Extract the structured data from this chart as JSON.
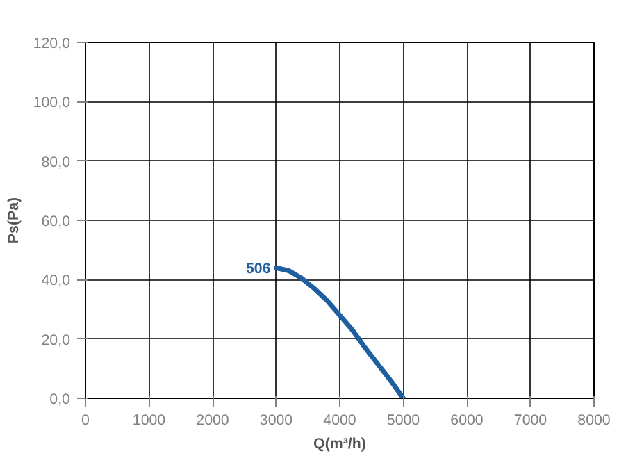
{
  "chart_data": {
    "type": "line",
    "xlabel": "Q(m³/h)",
    "ylabel": "Ps(Pa)",
    "xlim": [
      0,
      8000
    ],
    "xticks": [
      0,
      1000,
      2000,
      3000,
      4000,
      5000,
      6000,
      7000,
      8000
    ],
    "ylim": [
      0,
      120
    ],
    "yticks": [
      {
        "value": 0,
        "label": "0,0"
      },
      {
        "value": 20,
        "label": "20,0"
      },
      {
        "value": 40,
        "label": "40,0"
      },
      {
        "value": 60,
        "label": "60,0"
      },
      {
        "value": 80,
        "label": "80,0"
      },
      {
        "value": 100,
        "label": "100,0"
      },
      {
        "value": 120,
        "label": "120,0"
      }
    ],
    "grid": true,
    "marker": "none",
    "line_style": "solid",
    "series": [
      {
        "name": "506",
        "color": "#1f5fa0",
        "x": [
          3000,
          3200,
          3400,
          3600,
          3800,
          4000,
          4200,
          4400,
          4600,
          4800,
          5000
        ],
        "values": [
          44,
          43,
          40.5,
          37,
          33,
          28,
          23,
          17,
          11.5,
          6,
          0
        ]
      }
    ]
  }
}
